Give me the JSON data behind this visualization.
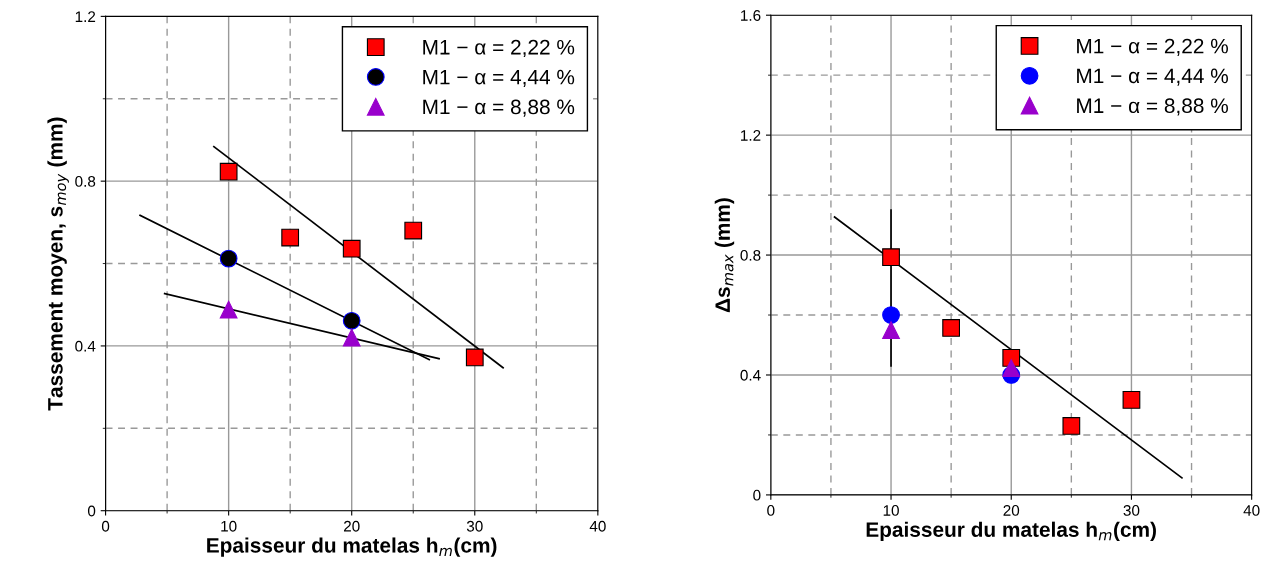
{
  "chart_data": [
    {
      "type": "scatter",
      "xlabel": "Epaisseur du matelas h$_{m}$(cm)",
      "ylabel": "Tassement moyen, s$_{moy}$ (mm)",
      "xlim": [
        0,
        40
      ],
      "xticks": [
        0,
        10,
        20,
        30,
        40
      ],
      "ylim": [
        0,
        1.2
      ],
      "yticks": [
        0,
        0.4,
        0.8,
        1.2
      ],
      "grid": true,
      "legend": "top right",
      "series": [
        {
          "name": "M1 − α = 2,22 %",
          "color": "#ff0000",
          "marker": "square",
          "x": [
            10,
            15,
            20,
            25,
            30
          ],
          "values": [
            0.823,
            0.663,
            0.636,
            0.68,
            0.372
          ]
        },
        {
          "name": "M1 − α = 4,44 %",
          "color": "#000000",
          "marker": "circle",
          "x": [
            10,
            20
          ],
          "values": [
            0.612,
            0.461
          ]
        },
        {
          "name": "M1 − α = 8,88 %",
          "color": "#9900cc",
          "marker": "triangle",
          "x": [
            10,
            20
          ],
          "values": [
            0.488,
            0.42
          ]
        },
        {
          "type": "line",
          "color": "#000000",
          "marker": "none",
          "x": [
            8.8,
            32.3
          ],
          "values": [
            0.884,
            0.347
          ]
        },
        {
          "type": "line",
          "color": "#000000",
          "marker": "none",
          "x": [
            2.8,
            26.3
          ],
          "values": [
            0.717,
            0.367
          ]
        },
        {
          "type": "line",
          "color": "#000000",
          "marker": "none",
          "x": [
            4.8,
            27.1
          ],
          "values": [
            0.527,
            0.369
          ]
        }
      ]
    },
    {
      "type": "scatter",
      "xlabel": "Epaisseur du matelas h$_{m}$(cm)",
      "ylabel": "Δs$_{max}$ (mm)",
      "xlim": [
        0,
        40
      ],
      "xticks": [
        0,
        10,
        20,
        30,
        40
      ],
      "ylim": [
        0,
        1.6
      ],
      "yticks": [
        0,
        0.4,
        0.8,
        1.2,
        1.6
      ],
      "grid": true,
      "legend": "top right",
      "series": [
        {
          "name": "M1 − α = 2,22 %",
          "color": "#ff0000",
          "marker": "square",
          "x": [
            10,
            15,
            20,
            25,
            30
          ],
          "values": [
            0.793,
            0.557,
            0.457,
            0.23,
            0.317
          ],
          "errors": [
            [
              0.43,
              0.95
            ],
            null,
            null,
            null,
            null
          ]
        },
        {
          "name": "M1 − α = 4,44 %",
          "color": "#0000ff",
          "marker": "circle",
          "x": [
            10,
            20
          ],
          "values": [
            0.6,
            0.4
          ]
        },
        {
          "name": "M1 − α = 8,88 %",
          "color": "#9900cc",
          "marker": "triangle",
          "x": [
            10,
            20
          ],
          "values": [
            0.55,
            0.423
          ]
        },
        {
          "type": "line",
          "color": "#000000",
          "marker": "none",
          "x": [
            5.3,
            34.2
          ],
          "values": [
            0.927,
            0.057
          ]
        }
      ]
    }
  ]
}
